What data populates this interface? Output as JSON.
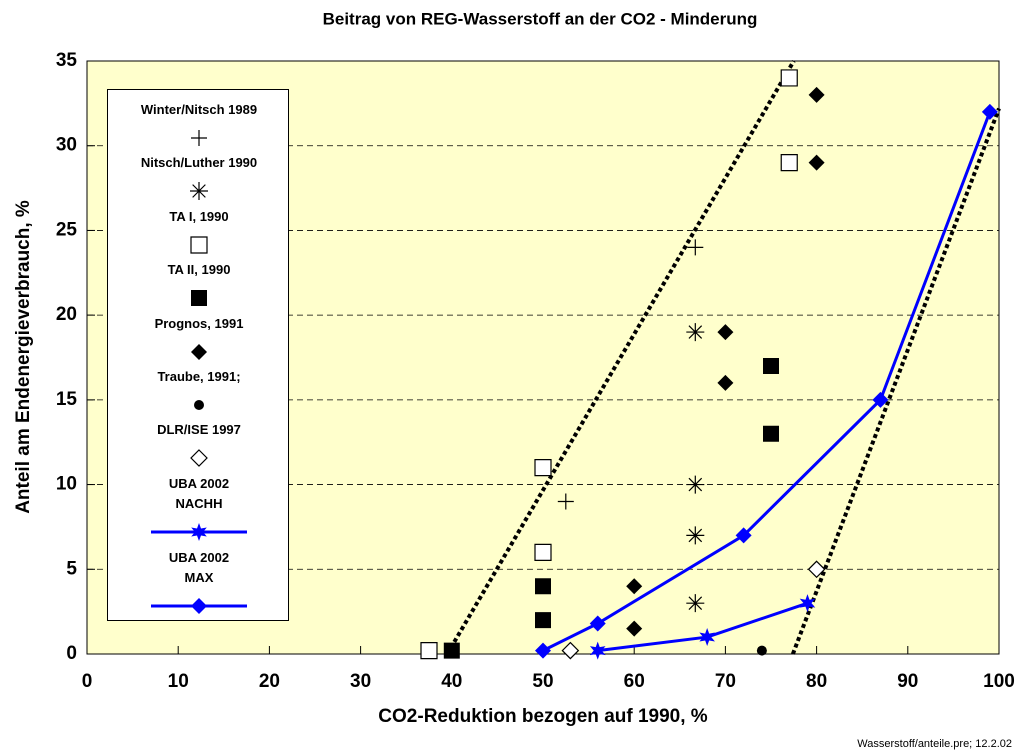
{
  "chart_data": {
    "type": "scatter",
    "title": "Beitrag von REG-Wasserstoff an der CO2 - Minderung",
    "x_label": "CO2-Reduktion bezogen auf 1990, %",
    "y_label": "Anteil am Endenergieverbrauch, %",
    "footer": "Wasserstoff/anteile.pre; 12.2.02",
    "xlim": [
      0,
      100
    ],
    "xticks": [
      0,
      10,
      20,
      30,
      40,
      50,
      60,
      70,
      80,
      90,
      100
    ],
    "ylim": [
      0,
      35
    ],
    "yticks": [
      0,
      5,
      10,
      15,
      20,
      25,
      30,
      35
    ],
    "grid": true,
    "series": [
      {
        "name": "Winter/Nitsch 1989",
        "marker": "plus",
        "color": "#000000",
        "x": [
          52.5,
          66.7
        ],
        "values": [
          9,
          24
        ]
      },
      {
        "name": "Nitsch/Luther 1990",
        "marker": "asterisk",
        "color": "#000000",
        "x": [
          66.7,
          66.7,
          66.7,
          66.7
        ],
        "values": [
          19,
          10,
          7,
          3
        ]
      },
      {
        "name": "TA I, 1990",
        "marker": "square-open",
        "color": "#000000",
        "x": [
          37.5,
          50,
          50,
          77,
          77
        ],
        "values": [
          0.2,
          11,
          6,
          34,
          29
        ]
      },
      {
        "name": "TA II, 1990",
        "marker": "square",
        "color": "#000000",
        "x": [
          40,
          50,
          50,
          75,
          75
        ],
        "values": [
          0.2,
          4,
          2,
          17,
          13
        ]
      },
      {
        "name": "Prognos, 1991",
        "marker": "diamond",
        "color": "#000000",
        "x": [
          80,
          80,
          70,
          70,
          60,
          60
        ],
        "values": [
          33,
          29,
          19,
          16,
          4,
          1.5
        ]
      },
      {
        "name": "Traube, 1991;",
        "marker": "circle",
        "color": "#000000",
        "x": [
          74
        ],
        "values": [
          0.2
        ]
      },
      {
        "name": "DLR/ISE 1997",
        "marker": "diamond-open",
        "color": "#000000",
        "x": [
          53,
          80
        ],
        "values": [
          0.2,
          5
        ]
      },
      {
        "name": "UBA 2002 NACHH",
        "marker": "star",
        "color": "#0000ff",
        "line": true,
        "x": [
          56,
          68,
          79
        ],
        "values": [
          0.2,
          1,
          3
        ]
      },
      {
        "name": "UBA 2002 MAX",
        "marker": "diamond",
        "color": "#0000ff",
        "line": true,
        "x": [
          50,
          56,
          72,
          87,
          99
        ],
        "values": [
          0.2,
          1.8,
          7,
          15,
          32
        ]
      }
    ],
    "trend_lines": [
      {
        "x": [
          39.5,
          77.5
        ],
        "y": [
          0,
          35
        ]
      },
      {
        "x": [
          77.4,
          100
        ],
        "y": [
          0,
          32.2
        ]
      }
    ]
  }
}
